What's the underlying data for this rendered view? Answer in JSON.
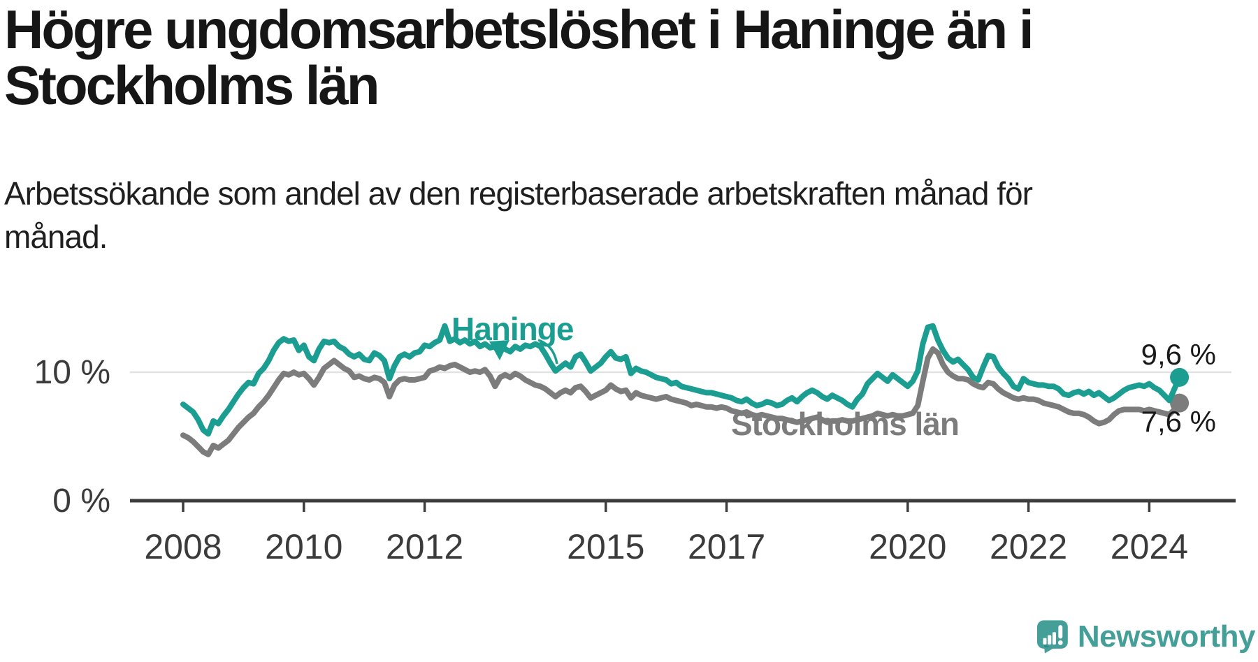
{
  "header": {
    "title": "Högre ungdomsarbetslöshet i Haninge än i Stockholms län",
    "title_lines": [
      "Högre ungdomsarbetslöshet i Haninge än i",
      "Stockholms län"
    ],
    "subtitle": "Arbetssökande som andel av den registerbaserade arbetskraften månad för månad.",
    "subtitle_lines": [
      "Arbetssökande som andel av den registerbaserade arbetskraften månad för",
      "månad."
    ]
  },
  "chart_data": {
    "type": "line",
    "frequency": "monthly",
    "x_start": {
      "year": 2008,
      "month": 1
    },
    "x_end": {
      "year": 2024,
      "month": 7
    },
    "x_ticks": [
      2008,
      2010,
      2012,
      2015,
      2017,
      2020,
      2022,
      2024
    ],
    "y_ticks": [
      {
        "value": 10,
        "label": "10 %"
      },
      {
        "value": 0,
        "label": "0 %"
      }
    ],
    "ylim": [
      0,
      14.5
    ],
    "grid": "horizontal-10-only",
    "legend_position": "inline-labels",
    "series": [
      {
        "name": "Haninge",
        "color": "#1b9e91",
        "end_label": "9,6 %",
        "end_value": 9.6,
        "values": [
          7.5,
          7.2,
          6.9,
          6.3,
          5.5,
          5.2,
          6.2,
          6.0,
          6.6,
          7.1,
          7.7,
          8.3,
          8.8,
          9.2,
          9.1,
          9.9,
          10.3,
          10.9,
          11.7,
          12.3,
          12.6,
          12.4,
          12.5,
          11.7,
          12.1,
          11.2,
          10.9,
          11.8,
          12.4,
          12.3,
          12.4,
          12.0,
          11.8,
          11.4,
          11.2,
          11.4,
          11.0,
          10.9,
          11.5,
          11.3,
          10.9,
          9.5,
          10.5,
          11.2,
          11.4,
          11.2,
          11.5,
          11.6,
          12.1,
          12.0,
          12.3,
          12.5,
          13.6,
          12.4,
          12.6,
          12.3,
          12.5,
          12.2,
          12.4,
          12.0,
          12.2,
          11.9,
          12.0,
          12.2,
          11.8,
          11.6,
          12.0,
          11.8,
          12.1,
          12.0,
          12.2,
          12.0,
          11.4,
          10.7,
          10.1,
          10.4,
          10.7,
          10.4,
          11.2,
          11.4,
          10.8,
          10.1,
          10.4,
          10.7,
          11.2,
          11.6,
          11.1,
          11.0,
          11.2,
          9.9,
          10.3,
          10.1,
          10.0,
          9.8,
          9.6,
          9.5,
          9.4,
          9.1,
          9.2,
          8.9,
          8.8,
          8.7,
          8.6,
          8.5,
          8.4,
          8.4,
          8.3,
          8.2,
          8.1,
          8.0,
          7.8,
          7.7,
          7.9,
          7.6,
          7.4,
          7.5,
          7.7,
          7.6,
          7.4,
          7.5,
          7.8,
          8.0,
          7.7,
          8.1,
          8.4,
          8.6,
          8.4,
          8.1,
          7.9,
          8.2,
          8.0,
          7.8,
          7.5,
          7.3,
          7.9,
          8.3,
          9.1,
          9.5,
          9.9,
          9.6,
          9.3,
          9.8,
          9.5,
          9.2,
          8.9,
          9.3,
          10.1,
          12.2,
          13.5,
          13.6,
          12.5,
          11.7,
          11.1,
          10.8,
          11.0,
          10.6,
          10.2,
          9.6,
          9.4,
          10.4,
          11.3,
          11.2,
          10.4,
          9.9,
          9.5,
          8.9,
          8.7,
          9.5,
          9.2,
          9.1,
          9.0,
          9.0,
          8.9,
          8.9,
          8.7,
          8.3,
          8.2,
          8.4,
          8.5,
          8.3,
          8.5,
          8.2,
          8.4,
          8.1,
          7.8,
          8.0,
          8.3,
          8.6,
          8.8,
          8.9,
          9.0,
          8.9,
          9.1,
          8.8,
          8.6,
          8.2,
          7.8,
          8.7,
          9.6
        ]
      },
      {
        "name": "Stockholms län",
        "color": "#7c7c7c",
        "end_label": "7,6 %",
        "end_value": 7.6,
        "values": [
          5.1,
          4.9,
          4.6,
          4.2,
          3.8,
          3.6,
          4.3,
          4.1,
          4.4,
          4.7,
          5.2,
          5.7,
          6.1,
          6.5,
          6.8,
          7.3,
          7.7,
          8.2,
          8.8,
          9.4,
          9.9,
          9.8,
          10.0,
          9.8,
          9.9,
          9.5,
          9.0,
          9.6,
          10.3,
          10.6,
          10.9,
          10.6,
          10.3,
          10.1,
          9.6,
          9.7,
          9.5,
          9.4,
          9.6,
          9.5,
          9.2,
          8.1,
          9.0,
          9.4,
          9.5,
          9.4,
          9.4,
          9.5,
          9.6,
          10.1,
          10.2,
          10.4,
          10.3,
          10.5,
          10.6,
          10.4,
          10.2,
          10.0,
          10.1,
          10.0,
          10.2,
          9.7,
          8.9,
          9.6,
          9.8,
          9.6,
          9.9,
          9.7,
          9.4,
          9.2,
          9.0,
          8.9,
          8.7,
          8.4,
          8.1,
          8.4,
          8.6,
          8.4,
          8.8,
          8.9,
          8.5,
          8.0,
          8.2,
          8.4,
          8.6,
          9.0,
          8.7,
          8.5,
          8.6,
          8.0,
          8.4,
          8.2,
          8.1,
          8.0,
          7.9,
          8.0,
          8.1,
          7.9,
          7.8,
          7.7,
          7.6,
          7.4,
          7.5,
          7.4,
          7.3,
          7.3,
          7.2,
          7.3,
          7.2,
          7.0,
          6.9,
          6.8,
          6.9,
          6.7,
          6.6,
          6.7,
          6.6,
          6.5,
          6.4,
          6.4,
          6.3,
          6.2,
          6.1,
          6.2,
          6.3,
          6.4,
          6.5,
          6.3,
          6.1,
          6.2,
          6.2,
          6.3,
          6.2,
          6.2,
          6.3,
          6.4,
          6.5,
          6.6,
          6.8,
          6.7,
          6.6,
          6.7,
          6.6,
          6.6,
          6.7,
          6.8,
          7.4,
          9.3,
          11.1,
          11.8,
          11.5,
          10.6,
          10.0,
          9.7,
          9.5,
          9.5,
          9.4,
          9.1,
          8.9,
          8.8,
          9.2,
          9.1,
          8.7,
          8.4,
          8.2,
          8.0,
          7.9,
          8.0,
          7.9,
          7.9,
          7.8,
          7.6,
          7.5,
          7.4,
          7.3,
          7.1,
          6.9,
          6.8,
          6.8,
          6.7,
          6.5,
          6.2,
          6.0,
          6.1,
          6.3,
          6.7,
          7.0,
          7.1,
          7.1,
          7.1,
          7.1,
          7.0,
          7.1,
          7.0,
          6.9,
          6.8,
          6.7,
          7.1,
          7.6
        ]
      }
    ]
  },
  "footer": {
    "brand": "Newsworthy"
  },
  "colors": {
    "haninge": "#1b9e91",
    "stockholm": "#7c7c7c",
    "gridline": "#e2e2e2",
    "axis": "#3d3d3d",
    "tick_text": "#3b3b3b",
    "logo_teal": "#459f99"
  }
}
